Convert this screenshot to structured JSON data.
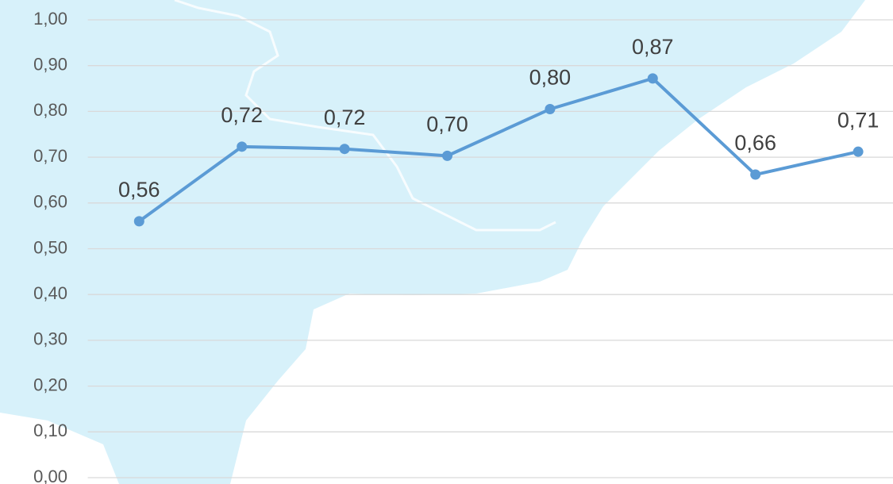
{
  "chart_data": {
    "type": "line",
    "series": [
      {
        "color": "#5b9bd5",
        "values": [
          0.56,
          0.723,
          0.718,
          0.703,
          0.805,
          0.872,
          0.662,
          0.712
        ],
        "value_labels": [
          "0,56",
          "0,72",
          "0,72",
          "0,70",
          "0,80",
          "0,87",
          "0,66",
          "0,71"
        ]
      }
    ],
    "ylim": [
      0,
      1
    ],
    "yticks": [
      {
        "value": 0,
        "label": "0,00"
      },
      {
        "value": 0.1,
        "label": "0,10"
      },
      {
        "value": 0.2,
        "label": "0,20"
      },
      {
        "value": 0.3,
        "label": "0,30"
      },
      {
        "value": 0.4,
        "label": "0,40"
      },
      {
        "value": 0.5,
        "label": "0,50"
      },
      {
        "value": 0.6,
        "label": "0,60"
      },
      {
        "value": 0.7,
        "label": "0,70"
      },
      {
        "value": 0.8,
        "label": "0,80"
      },
      {
        "value": 0.9,
        "label": "0,90"
      },
      {
        "value": 1,
        "label": "1,00"
      }
    ],
    "grid": true
  }
}
